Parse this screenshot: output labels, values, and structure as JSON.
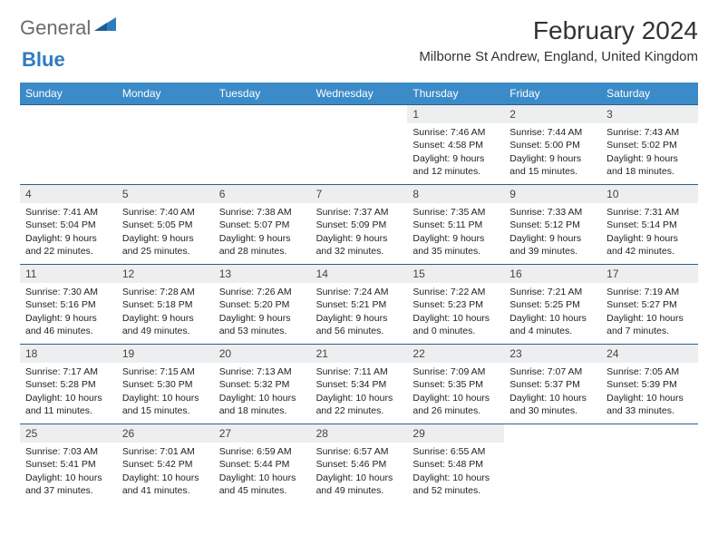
{
  "logo": {
    "text1": "General",
    "text2": "Blue"
  },
  "title": "February 2024",
  "location": "Milborne St Andrew, England, United Kingdom",
  "colors": {
    "header_bg": "#3b8bc9",
    "header_text": "#ffffff",
    "daynum_bg": "#eceef0",
    "cell_border": "#2e5f8a",
    "logo_gray": "#6b6b6b",
    "logo_blue": "#2f7bc0"
  },
  "daysOfWeek": [
    "Sunday",
    "Monday",
    "Tuesday",
    "Wednesday",
    "Thursday",
    "Friday",
    "Saturday"
  ],
  "leadingBlanks": 4,
  "cells": [
    {
      "n": "1",
      "sr": "7:46 AM",
      "ss": "4:58 PM",
      "dl": "9 hours and 12 minutes."
    },
    {
      "n": "2",
      "sr": "7:44 AM",
      "ss": "5:00 PM",
      "dl": "9 hours and 15 minutes."
    },
    {
      "n": "3",
      "sr": "7:43 AM",
      "ss": "5:02 PM",
      "dl": "9 hours and 18 minutes."
    },
    {
      "n": "4",
      "sr": "7:41 AM",
      "ss": "5:04 PM",
      "dl": "9 hours and 22 minutes."
    },
    {
      "n": "5",
      "sr": "7:40 AM",
      "ss": "5:05 PM",
      "dl": "9 hours and 25 minutes."
    },
    {
      "n": "6",
      "sr": "7:38 AM",
      "ss": "5:07 PM",
      "dl": "9 hours and 28 minutes."
    },
    {
      "n": "7",
      "sr": "7:37 AM",
      "ss": "5:09 PM",
      "dl": "9 hours and 32 minutes."
    },
    {
      "n": "8",
      "sr": "7:35 AM",
      "ss": "5:11 PM",
      "dl": "9 hours and 35 minutes."
    },
    {
      "n": "9",
      "sr": "7:33 AM",
      "ss": "5:12 PM",
      "dl": "9 hours and 39 minutes."
    },
    {
      "n": "10",
      "sr": "7:31 AM",
      "ss": "5:14 PM",
      "dl": "9 hours and 42 minutes."
    },
    {
      "n": "11",
      "sr": "7:30 AM",
      "ss": "5:16 PM",
      "dl": "9 hours and 46 minutes."
    },
    {
      "n": "12",
      "sr": "7:28 AM",
      "ss": "5:18 PM",
      "dl": "9 hours and 49 minutes."
    },
    {
      "n": "13",
      "sr": "7:26 AM",
      "ss": "5:20 PM",
      "dl": "9 hours and 53 minutes."
    },
    {
      "n": "14",
      "sr": "7:24 AM",
      "ss": "5:21 PM",
      "dl": "9 hours and 56 minutes."
    },
    {
      "n": "15",
      "sr": "7:22 AM",
      "ss": "5:23 PM",
      "dl": "10 hours and 0 minutes."
    },
    {
      "n": "16",
      "sr": "7:21 AM",
      "ss": "5:25 PM",
      "dl": "10 hours and 4 minutes."
    },
    {
      "n": "17",
      "sr": "7:19 AM",
      "ss": "5:27 PM",
      "dl": "10 hours and 7 minutes."
    },
    {
      "n": "18",
      "sr": "7:17 AM",
      "ss": "5:28 PM",
      "dl": "10 hours and 11 minutes."
    },
    {
      "n": "19",
      "sr": "7:15 AM",
      "ss": "5:30 PM",
      "dl": "10 hours and 15 minutes."
    },
    {
      "n": "20",
      "sr": "7:13 AM",
      "ss": "5:32 PM",
      "dl": "10 hours and 18 minutes."
    },
    {
      "n": "21",
      "sr": "7:11 AM",
      "ss": "5:34 PM",
      "dl": "10 hours and 22 minutes."
    },
    {
      "n": "22",
      "sr": "7:09 AM",
      "ss": "5:35 PM",
      "dl": "10 hours and 26 minutes."
    },
    {
      "n": "23",
      "sr": "7:07 AM",
      "ss": "5:37 PM",
      "dl": "10 hours and 30 minutes."
    },
    {
      "n": "24",
      "sr": "7:05 AM",
      "ss": "5:39 PM",
      "dl": "10 hours and 33 minutes."
    },
    {
      "n": "25",
      "sr": "7:03 AM",
      "ss": "5:41 PM",
      "dl": "10 hours and 37 minutes."
    },
    {
      "n": "26",
      "sr": "7:01 AM",
      "ss": "5:42 PM",
      "dl": "10 hours and 41 minutes."
    },
    {
      "n": "27",
      "sr": "6:59 AM",
      "ss": "5:44 PM",
      "dl": "10 hours and 45 minutes."
    },
    {
      "n": "28",
      "sr": "6:57 AM",
      "ss": "5:46 PM",
      "dl": "10 hours and 49 minutes."
    },
    {
      "n": "29",
      "sr": "6:55 AM",
      "ss": "5:48 PM",
      "dl": "10 hours and 52 minutes."
    }
  ],
  "labels": {
    "sunrise": "Sunrise: ",
    "sunset": "Sunset: ",
    "daylight": "Daylight: "
  }
}
